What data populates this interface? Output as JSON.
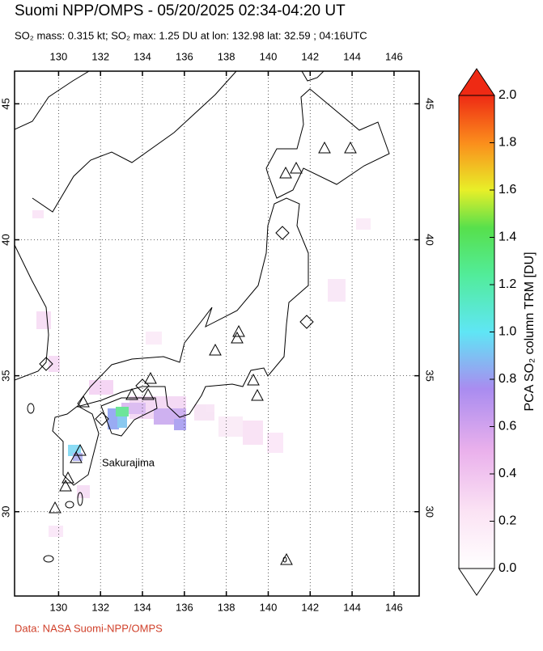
{
  "header": {
    "title": "Suomi NPP/OMPS - 05/20/2025 02:34-04:20 UT",
    "subtitle": "SO₂ mass: 0.315 kt; SO₂ max: 1.25 DU at lon: 132.98 lat: 32.59 ; 04:16UTC"
  },
  "map": {
    "xlim": [
      127.9,
      147.2
    ],
    "ylim": [
      26.9,
      46.2
    ],
    "lon_ticks": [
      130,
      132,
      134,
      136,
      138,
      140,
      142,
      144,
      146
    ],
    "lat_ticks": [
      30,
      35,
      40,
      45
    ],
    "label": "Sakurajima"
  },
  "colorbar": {
    "label": "PCA SO₂ column TRM [DU]",
    "lim": [
      0,
      2
    ],
    "ticks": [
      {
        "value": 0,
        "label": "0.0"
      },
      {
        "value": 0.2,
        "label": "0.2"
      },
      {
        "value": 0.4,
        "label": "0.4"
      },
      {
        "value": 0.6,
        "label": "0.6"
      },
      {
        "value": 0.8,
        "label": "0.8"
      },
      {
        "value": 1,
        "label": "1.0"
      },
      {
        "value": 1.2,
        "label": "1.2"
      },
      {
        "value": 1.4,
        "label": "1.4"
      },
      {
        "value": 1.6,
        "label": "1.6"
      },
      {
        "value": 1.8,
        "label": "1.8"
      },
      {
        "value": 2,
        "label": "2.0"
      }
    ]
  },
  "footer": "Data: NASA Suomi-NPP/OMPS"
}
